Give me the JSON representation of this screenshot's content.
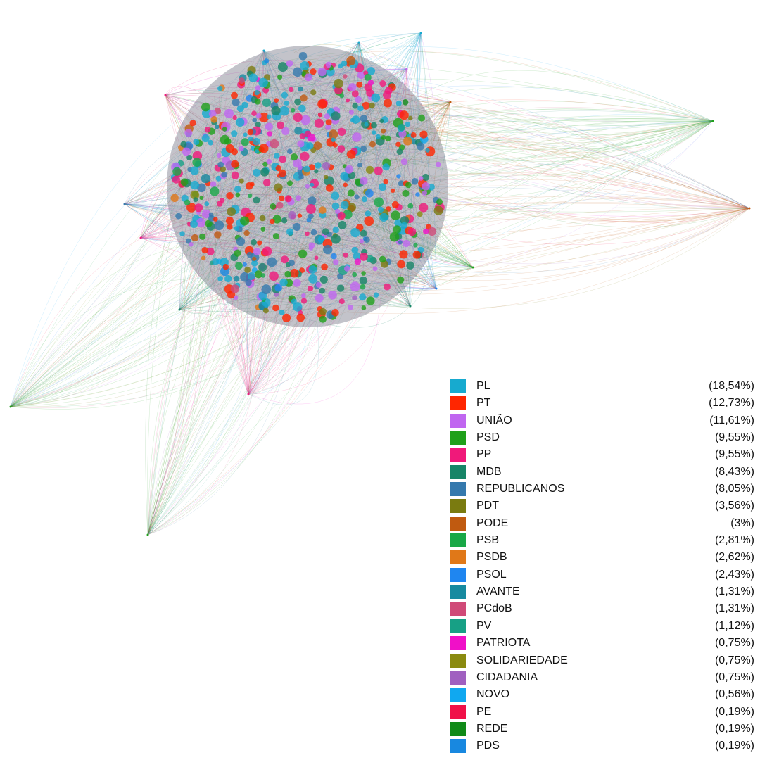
{
  "legend": {
    "items": [
      {
        "party": "PL",
        "share": "(18,54%)",
        "color": "#17aacf"
      },
      {
        "party": "PT",
        "share": "(12,73%)",
        "color": "#ff2600"
      },
      {
        "party": "UNIÃO",
        "share": "(11,61%)",
        "color": "#c066f0"
      },
      {
        "party": "PSD",
        "share": "(9,55%)",
        "color": "#1fa01a"
      },
      {
        "party": "PP",
        "share": "(9,55%)",
        "color": "#f0197a"
      },
      {
        "party": "MDB",
        "share": "(8,43%)",
        "color": "#178567"
      },
      {
        "party": "REPUBLICANOS",
        "share": "(8,05%)",
        "color": "#3579ad"
      },
      {
        "party": "PDT",
        "share": "(3,56%)",
        "color": "#7a7b10"
      },
      {
        "party": "PODE",
        "share": "(3%)",
        "color": "#c05a10"
      },
      {
        "party": "PSB",
        "share": "(2,81%)",
        "color": "#19a847"
      },
      {
        "party": "PSDB",
        "share": "(2,62%)",
        "color": "#e07818"
      },
      {
        "party": "PSOL",
        "share": "(2,43%)",
        "color": "#1f86f0"
      },
      {
        "party": "AVANTE",
        "share": "(1,31%)",
        "color": "#178aa0"
      },
      {
        "party": "PCdoB",
        "share": "(1,31%)",
        "color": "#d04a78"
      },
      {
        "party": "PV",
        "share": "(1,12%)",
        "color": "#17a085"
      },
      {
        "party": "PATRIOTA",
        "share": "(0,75%)",
        "color": "#f010c8"
      },
      {
        "party": "SOLIDARIEDADE",
        "share": "(0,75%)",
        "color": "#8a8a10"
      },
      {
        "party": "CIDADANIA",
        "share": "(0,75%)",
        "color": "#a060c0"
      },
      {
        "party": "NOVO",
        "share": "(0,56%)",
        "color": "#10a8f0"
      },
      {
        "party": "PE",
        "share": "(0,19%)",
        "color": "#f01048"
      },
      {
        "party": "REDE",
        "share": "(0,19%)",
        "color": "#108a18"
      },
      {
        "party": "PDS",
        "share": "(0,19%)",
        "color": "#1888e0"
      }
    ]
  }
}
